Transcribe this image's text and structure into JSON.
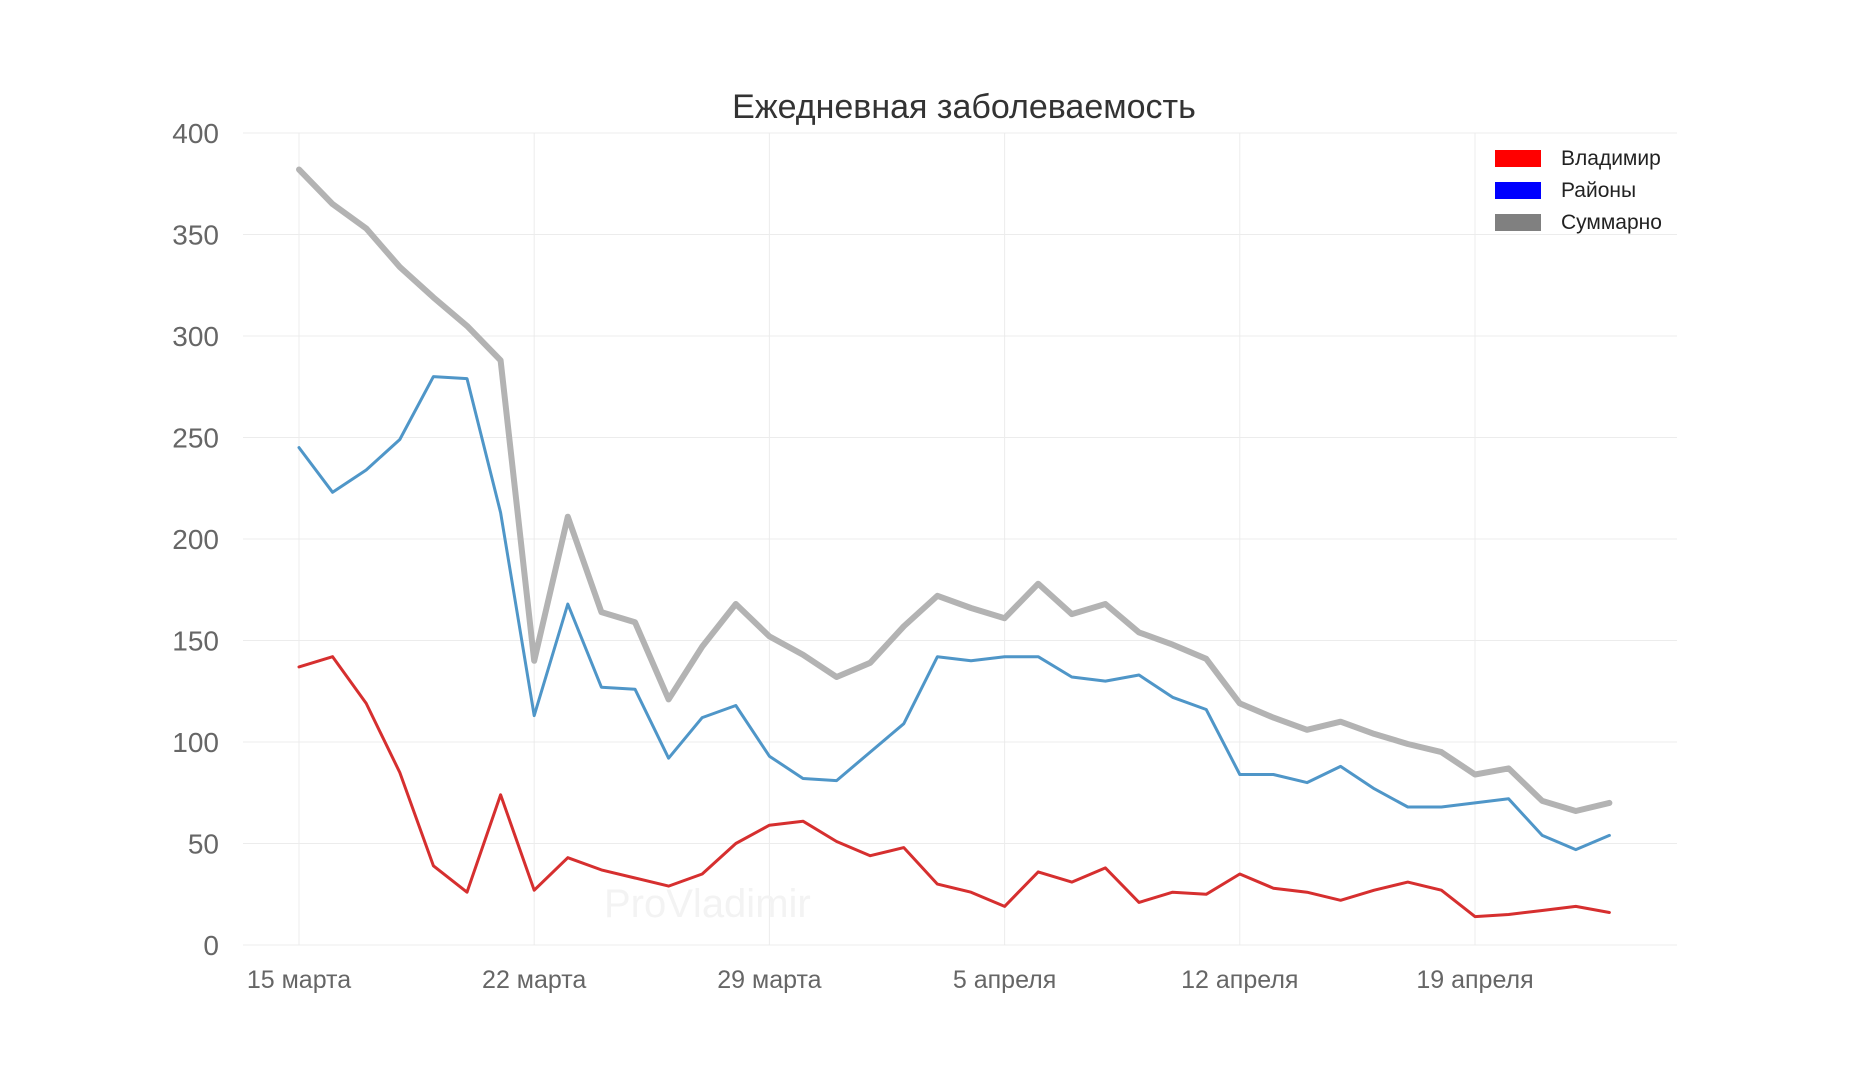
{
  "chart_data": {
    "type": "line",
    "title": "Ежедневная заболеваемость",
    "watermark": "ProVladimir",
    "xlabel": "",
    "ylabel": "",
    "ylim": [
      0,
      400
    ],
    "yticks": [
      0,
      50,
      100,
      150,
      200,
      250,
      300,
      350,
      400
    ],
    "x_start": "15 марта",
    "x_end": "24 апреля",
    "xticks": [
      {
        "label": "15 марта",
        "day": 0
      },
      {
        "label": "22 марта",
        "day": 7
      },
      {
        "label": "29 марта",
        "day": 14
      },
      {
        "label": "5 апреля",
        "day": 21
      },
      {
        "label": "12 апреля",
        "day": 28
      },
      {
        "label": "19 апреля",
        "day": 35
      }
    ],
    "grid": true,
    "legend_position": "top-right",
    "legend": [
      {
        "name": "Владимир",
        "color": "#ff0000"
      },
      {
        "name": "Районы",
        "color": "#0000ff"
      },
      {
        "name": "Суммарно",
        "color": "#808080"
      }
    ],
    "series": [
      {
        "name": "Суммарно",
        "color": "#b3b3b3",
        "values": [
          382,
          365,
          353,
          334,
          319,
          305,
          288,
          140,
          211,
          164,
          159,
          121,
          147,
          168,
          152,
          143,
          132,
          139,
          157,
          172,
          166,
          161,
          178,
          163,
          168,
          154,
          148,
          141,
          119,
          112,
          106,
          110,
          104,
          99,
          95,
          84,
          87,
          71,
          66,
          70
        ]
      },
      {
        "name": "Районы",
        "color": "#4f96c8",
        "values": [
          245,
          223,
          234,
          249,
          280,
          279,
          213,
          113,
          168,
          127,
          126,
          92,
          112,
          118,
          93,
          82,
          81,
          95,
          109,
          142,
          140,
          142,
          142,
          132,
          130,
          133,
          122,
          116,
          84,
          84,
          80,
          88,
          77,
          68,
          68,
          70,
          72,
          54,
          47,
          54
        ]
      },
      {
        "name": "Владимир",
        "color": "#d62f2f",
        "values": [
          137,
          142,
          119,
          85,
          39,
          26,
          74,
          27,
          43,
          37,
          33,
          29,
          35,
          50,
          59,
          61,
          51,
          44,
          48,
          30,
          26,
          19,
          36,
          31,
          38,
          21,
          26,
          25,
          35,
          28,
          26,
          22,
          27,
          31,
          27,
          14,
          15,
          17,
          19,
          16
        ]
      }
    ]
  }
}
